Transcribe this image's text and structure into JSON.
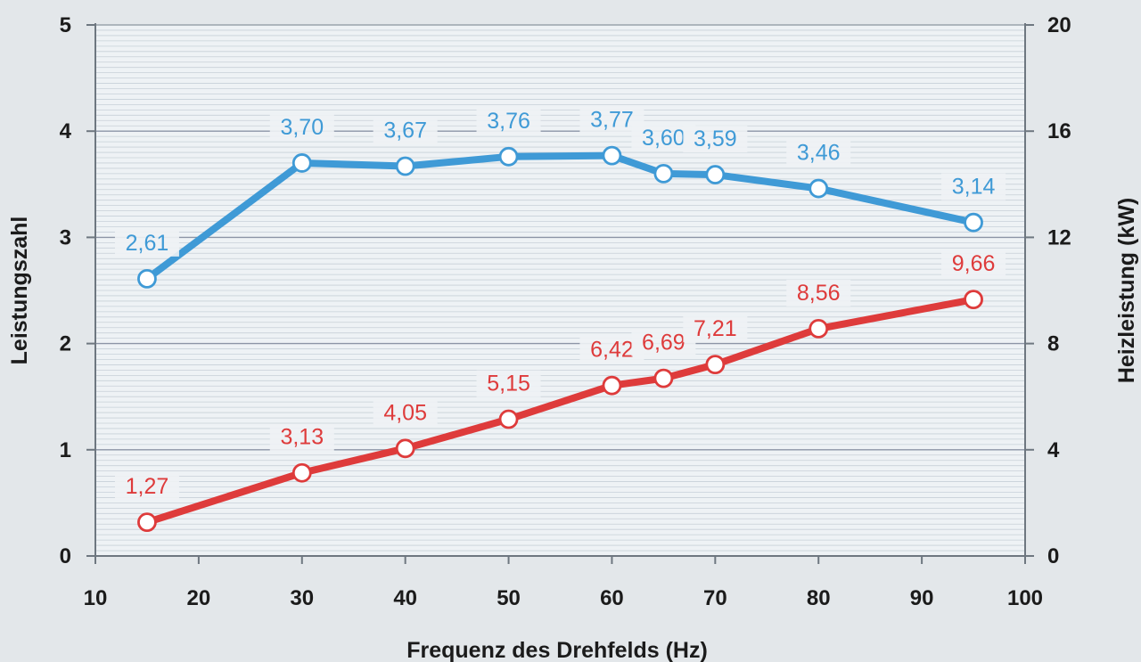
{
  "chart_data": {
    "type": "line",
    "xlabel": "Frequenz des Drehfelds (Hz)",
    "ylabel_left": "Leistungszahl",
    "ylabel_right": "Heizleistung (kW)",
    "xlim": [
      10,
      100
    ],
    "ylim_left": [
      0,
      5
    ],
    "ylim_right": [
      0,
      20
    ],
    "x_ticks": [
      "10",
      "20",
      "30",
      "40",
      "50",
      "60",
      "70",
      "80",
      "90",
      "100"
    ],
    "y_ticks_left": [
      "0",
      "1",
      "2",
      "3",
      "4",
      "5"
    ],
    "y_ticks_right": [
      "0",
      "4",
      "8",
      "12",
      "16",
      "20"
    ],
    "grid": true,
    "series": [
      {
        "name": "Leistungszahl",
        "axis": "left",
        "color": "#3f9ad6",
        "x": [
          15,
          30,
          40,
          50,
          60,
          65,
          70,
          80,
          95
        ],
        "values": [
          2.61,
          3.7,
          3.67,
          3.76,
          3.77,
          3.6,
          3.59,
          3.46,
          3.14
        ],
        "labels": [
          "2,61",
          "3,70",
          "3,67",
          "3,76",
          "3,77",
          "3,60",
          "3,59",
          "3,46",
          "3,14"
        ]
      },
      {
        "name": "Heizleistung",
        "axis": "right",
        "color": "#de3b3b",
        "x": [
          15,
          30,
          40,
          50,
          60,
          65,
          70,
          80,
          95
        ],
        "values": [
          1.27,
          3.13,
          4.05,
          5.15,
          6.42,
          6.69,
          7.21,
          8.56,
          9.66
        ],
        "labels": [
          "1,27",
          "3,13",
          "4,05",
          "5,15",
          "6,42",
          "6,69",
          "7,21",
          "8,56",
          "9,66"
        ]
      }
    ]
  }
}
